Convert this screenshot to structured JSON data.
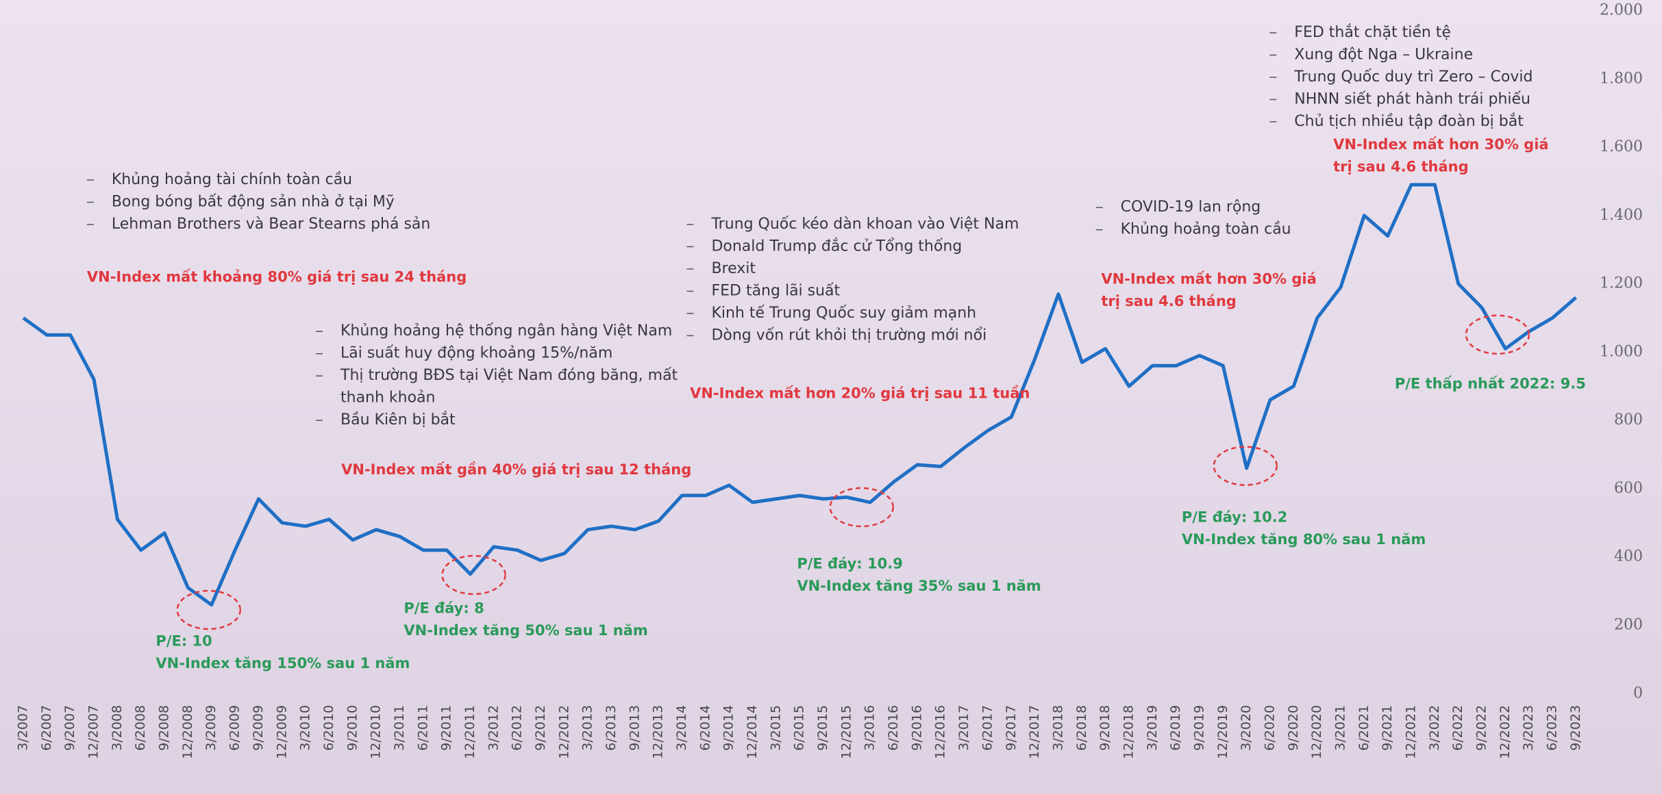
{
  "chart_data": {
    "type": "line",
    "categories": [
      "3/2007",
      "6/2007",
      "9/2007",
      "12/2007",
      "3/2008",
      "6/2008",
      "9/2008",
      "12/2008",
      "3/2009",
      "6/2009",
      "9/2009",
      "12/2009",
      "3/2010",
      "6/2010",
      "9/2010",
      "12/2010",
      "3/2011",
      "6/2011",
      "9/2011",
      "12/2011",
      "3/2012",
      "6/2012",
      "9/2012",
      "12/2012",
      "3/2013",
      "6/2013",
      "9/2013",
      "12/2013",
      "3/2014",
      "6/2014",
      "9/2014",
      "12/2014",
      "3/2015",
      "6/2015",
      "9/2015",
      "12/2015",
      "3/2016",
      "6/2016",
      "9/2016",
      "12/2016",
      "3/2017",
      "6/2017",
      "9/2017",
      "12/2017",
      "3/2018",
      "6/2018",
      "9/2018",
      "12/2018",
      "3/2019",
      "6/2019",
      "9/2019",
      "12/2019",
      "3/2020",
      "6/2020",
      "9/2020",
      "12/2020",
      "3/2021",
      "6/2021",
      "9/2021",
      "12/2021",
      "3/2022",
      "6/2022",
      "9/2022",
      "12/2022",
      "3/2023",
      "6/2023",
      "9/2023"
    ],
    "values": [
      1100,
      1050,
      1050,
      920,
      510,
      420,
      470,
      310,
      260,
      420,
      570,
      500,
      490,
      510,
      450,
      480,
      460,
      420,
      420,
      350,
      430,
      420,
      390,
      410,
      480,
      490,
      480,
      505,
      580,
      580,
      610,
      560,
      570,
      580,
      570,
      575,
      560,
      620,
      670,
      665,
      720,
      770,
      810,
      980,
      1170,
      970,
      1010,
      900,
      960,
      960,
      990,
      960,
      660,
      860,
      900,
      1100,
      1190,
      1400,
      1340,
      1490,
      1490,
      1200,
      1130,
      1010,
      1060,
      1100,
      1160
    ],
    "color": "#1f6fc5",
    "ylim": [
      0,
      2000
    ],
    "yticks": [
      0,
      200,
      400,
      600,
      800,
      {
        "value": 1000,
        "label": "1.000"
      },
      {
        "value": 1200,
        "label": "1.200"
      },
      {
        "value": 1400,
        "label": "1.400"
      },
      {
        "value": 1600,
        "label": "1.600"
      },
      {
        "value": 1800,
        "label": "1.800"
      },
      {
        "value": 2000,
        "label": "2.000"
      }
    ],
    "annotations": [
      {
        "bullets": [
          [
            "Khủng hoảng tài chính toàn cầu"
          ],
          [
            "Bong bóng bất động sản nhà ở tại Mỹ"
          ],
          [
            "Lehman Brothers và Bear Stearns phá sản"
          ]
        ],
        "red": [
          "VN-Index mất khoảng 80% giá trị sau 24 tháng"
        ],
        "green": [
          "P/E: 10",
          "VN-Index tăng 150% sau 1 năm"
        ]
      },
      {
        "bullets": [
          [
            "Khủng hoảng hệ thống ngân hàng Việt Nam"
          ],
          [
            "Lãi suất huy động khoảng 15%/năm"
          ],
          [
            "Thị trường BĐS tại Việt Nam đóng băng, mất",
            "thanh khoản"
          ],
          [
            "Bầu Kiên bị bắt"
          ]
        ],
        "red": [
          "VN-Index mất gần 40% giá trị sau 12 tháng"
        ],
        "green": [
          "P/E đáy: 8",
          "VN-Index tăng 50% sau 1 năm"
        ]
      },
      {
        "bullets": [
          [
            "Trung Quốc kéo dàn khoan vào Việt Nam"
          ],
          [
            "Donald Trump đắc cử Tổng thống"
          ],
          [
            "Brexit"
          ],
          [
            "FED tăng lãi suất"
          ],
          [
            "Kinh tế Trung Quốc suy giảm mạnh"
          ],
          [
            "Dòng vốn rút khỏi thị trường mới nổi"
          ]
        ],
        "red": [
          "VN-Index mất hơn 20% giá trị sau 11 tuần"
        ],
        "green": [
          "P/E đáy: 10.9",
          "VN-Index tăng 35% sau 1 năm"
        ]
      },
      {
        "bullets": [
          [
            "COVID-19 lan rộng"
          ],
          [
            "Khủng hoảng toàn cầu"
          ]
        ],
        "red": [
          "VN-Index mất hơn 30% giá",
          "trị sau 4.6 tháng"
        ],
        "green": [
          "P/E đáy: 10.2",
          "VN-Index tăng 80% sau 1 năm"
        ]
      },
      {
        "bullets": [
          [
            "FED thắt chặt tiền tệ"
          ],
          [
            "Xung đột Nga – Ukraine"
          ],
          [
            "Trung Quốc duy trì Zero – Covid"
          ],
          [
            "NHNN siết phát hành trái phiếu"
          ],
          [
            "Chủ tịch nhiều tập đoàn bị bắt"
          ]
        ],
        "red": [
          "VN-Index mất hơn 30% giá",
          "trị sau 4.6 tháng"
        ],
        "green": [
          "P/E thấp nhất 2022: 9.5"
        ]
      }
    ]
  }
}
